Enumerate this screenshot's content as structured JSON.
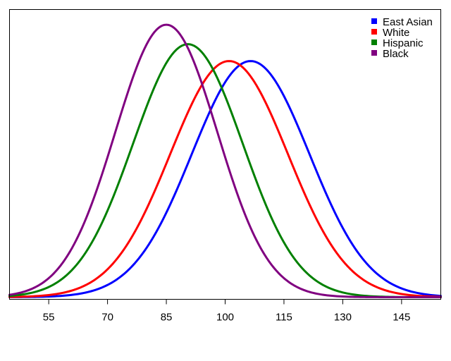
{
  "chart_data": {
    "type": "line",
    "title": "",
    "xlabel": "",
    "ylabel": "",
    "xlim": [
      45,
      155
    ],
    "ylim": [
      0,
      0.0324
    ],
    "grid": false,
    "legend_position": "top-right",
    "x_ticks": [
      "55",
      "70",
      "85",
      "100",
      "115",
      "130",
      "145"
    ],
    "series": [
      {
        "name": "East Asian",
        "color": "#0000ff",
        "mean": 106.5,
        "sd": 15,
        "x": [
          45,
          55,
          65,
          75,
          85,
          95,
          100,
          106.5,
          115,
          125,
          135,
          145,
          155
        ],
        "y": [
          0.0005,
          0.0015,
          0.0033,
          0.0072,
          0.0134,
          0.022,
          0.024,
          0.0266,
          0.023,
          0.0164,
          0.0081,
          0.0035,
          0.0015
        ]
      },
      {
        "name": "White",
        "color": "#ff0000",
        "mean": 101,
        "sd": 15,
        "x": [
          45,
          55,
          65,
          75,
          85,
          95,
          101,
          110,
          115,
          125,
          135,
          145,
          155
        ],
        "y": [
          0.0002,
          0.0011,
          0.0032,
          0.0081,
          0.0157,
          0.0254,
          0.0266,
          0.0245,
          0.0185,
          0.0084,
          0.0038,
          0.0009,
          0.0001
        ]
      },
      {
        "name": "Hispanic",
        "color": "#008000",
        "mean": 90.5,
        "sd": 14,
        "x": [
          45,
          55,
          65,
          75,
          85,
          90.5,
          95,
          105,
          115,
          125,
          135,
          145,
          155
        ],
        "y": [
          0.0005,
          0.0021,
          0.0052,
          0.015,
          0.0266,
          0.0284,
          0.0274,
          0.0178,
          0.0087,
          0.0023,
          0.0006,
          0.0002,
          0.0001
        ]
      },
      {
        "name": "Black",
        "color": "#800080",
        "mean": 85,
        "sd": 13,
        "x": [
          45,
          55,
          65,
          75,
          85,
          95,
          105,
          115,
          125,
          135,
          145,
          155
        ],
        "y": [
          0.0006,
          0.0028,
          0.0101,
          0.0225,
          0.0307,
          0.0234,
          0.0105,
          0.0023,
          0.0006,
          0.0001,
          0.0,
          0.0
        ]
      }
    ]
  }
}
